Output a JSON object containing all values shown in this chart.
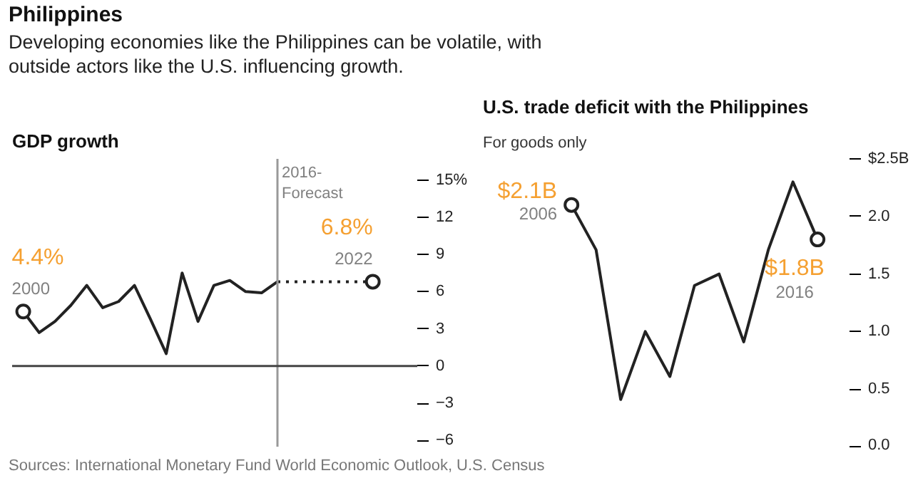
{
  "chart_data": [
    {
      "type": "line",
      "title": "GDP growth",
      "annotations": [
        "Philippines",
        "Developing economies like the Philippines can be volatile, with outside actors like the U.S. influencing growth.",
        "Sources: International Monetary Fund World Economic Outlook, U.S. Census",
        "4.4%",
        "2000",
        "6.8%",
        "2022"
      ],
      "categories": [
        null,
        null,
        null,
        null,
        null,
        null,
        null,
        null,
        null,
        null,
        null,
        null,
        null,
        null,
        null,
        null,
        null,
        null,
        null,
        null,
        null,
        null,
        null
      ],
      "series": [
        {
          "color": "#222222",
          "values": [
            4.4,
            2.7,
            3.6,
            4.9,
            6.5,
            4.7,
            5.2,
            6.5,
            3.8,
            1.0,
            7.5,
            3.6,
            6.5,
            6.9,
            6.0,
            5.9,
            6.8,
            null,
            null,
            null,
            null,
            null,
            null
          ]
        },
        {
          "color": "#222222",
          "line_style": "dotted",
          "values": [
            null,
            null,
            null,
            null,
            null,
            null,
            null,
            null,
            null,
            null,
            null,
            null,
            null,
            null,
            null,
            null,
            6.8,
            6.8,
            6.8,
            6.8,
            6.8,
            6.8,
            6.8
          ]
        },
        {
          "type": "scatter",
          "color": "#222222",
          "marker": "circle",
          "values": [
            4.4,
            null,
            null,
            null,
            null,
            null,
            null,
            null,
            null,
            null,
            null,
            null,
            null,
            null,
            null,
            null,
            null,
            null,
            null,
            null,
            null,
            null,
            6.8
          ]
        }
      ],
      "ylim": [
        -6.5,
        16.7
      ],
      "yticks": [
        {
          "value": 15,
          "label": "15%"
        },
        12,
        9,
        6,
        3,
        0,
        {
          "value": -3,
          "label": "−3"
        },
        {
          "value": -6,
          "label": "−6"
        }
      ],
      "tick_labels": "y",
      "ref_lines": [
        {
          "axis": "x",
          "label": "2016-\nForecast",
          "color": "#999999"
        },
        {
          "axis": "y",
          "value": 0,
          "color": "#444444"
        }
      ]
    },
    {
      "type": "line",
      "title": "U.S. trade deficit with the Philippines",
      "subtitle": "For goods only",
      "annotations": [
        "$2.1B",
        "2006",
        "$1.8B",
        "2016"
      ],
      "categories": [
        null,
        null,
        null,
        null,
        null,
        null,
        null,
        null,
        null,
        null,
        null
      ],
      "series": [
        {
          "color": "#222222",
          "values": [
            2.1,
            1.71,
            0.41,
            1.0,
            0.61,
            1.4,
            1.5,
            0.91,
            1.71,
            2.3,
            1.8
          ]
        },
        {
          "type": "scatter",
          "color": "#222222",
          "marker": "circle",
          "values": [
            2.1,
            null,
            null,
            null,
            null,
            null,
            null,
            null,
            null,
            null,
            1.8
          ]
        }
      ],
      "ylim": [
        0,
        2.5
      ],
      "yticks": [
        {
          "value": 2.5,
          "label": "$2.5B"
        },
        {
          "value": 2,
          "label": "2.0"
        },
        {
          "value": 1.5,
          "label": "1.5"
        },
        {
          "value": 1,
          "label": "1.0"
        },
        {
          "value": 0.5,
          "label": "0.5"
        },
        {
          "value": 0,
          "label": "0.0"
        }
      ],
      "tick_labels": "y"
    }
  ]
}
